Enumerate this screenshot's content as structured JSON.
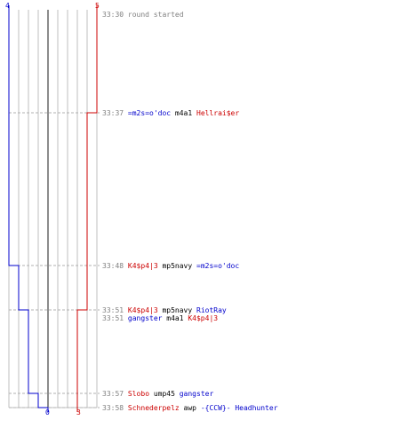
{
  "chart_data": {
    "type": "line",
    "title": "",
    "top_counts": {
      "blue": "4",
      "red": "5"
    },
    "bottom_counts": {
      "blue": "0",
      "red": "3"
    },
    "colors": {
      "blue_team": "#0000cc",
      "red_team": "#cc0000",
      "time": "#808080",
      "grid": "#bfbfbf"
    },
    "grid_columns": 10,
    "series": [
      {
        "team": "blue",
        "steps": [
          {
            "time": "33:30",
            "alive": 4
          },
          {
            "time": "33:48",
            "alive": 3
          },
          {
            "time": "33:51",
            "alive": 2
          },
          {
            "time": "33:57",
            "alive": 1
          },
          {
            "time": "33:58",
            "alive": 0
          }
        ]
      },
      {
        "team": "red",
        "steps": [
          {
            "time": "33:30",
            "alive": 5
          },
          {
            "time": "33:37",
            "alive": 4
          },
          {
            "time": "33:51",
            "alive": 3
          }
        ]
      }
    ],
    "events": [
      {
        "time": "33:30",
        "message": "round started"
      },
      {
        "time": "33:37",
        "killer": "=m2s=o'doc",
        "killer_team": "blue",
        "weapon": "m4a1",
        "victim": "Hellrai$er",
        "victim_team": "red"
      },
      {
        "time": "33:48",
        "killer": "K4$p4|3",
        "killer_team": "red",
        "weapon": "mp5navy",
        "victim": "=m2s=o'doc",
        "victim_team": "blue"
      },
      {
        "time": "33:51",
        "killer": "K4$p4|3",
        "killer_team": "red",
        "weapon": "mp5navy",
        "victim": "RiotRay",
        "victim_team": "blue"
      },
      {
        "time": "33:51",
        "killer": "gangster",
        "killer_team": "blue",
        "weapon": "m4a1",
        "victim": "K4$p4|3",
        "victim_team": "red"
      },
      {
        "time": "33:57",
        "killer": "Slobo",
        "killer_team": "red",
        "weapon": "ump45",
        "victim": "gangster",
        "victim_team": "blue"
      },
      {
        "time": "33:58",
        "killer": "Schnederpelz",
        "killer_team": "red",
        "weapon": "awp",
        "victim": "-{CCW}- Headhunter",
        "victim_team": "blue"
      }
    ]
  }
}
